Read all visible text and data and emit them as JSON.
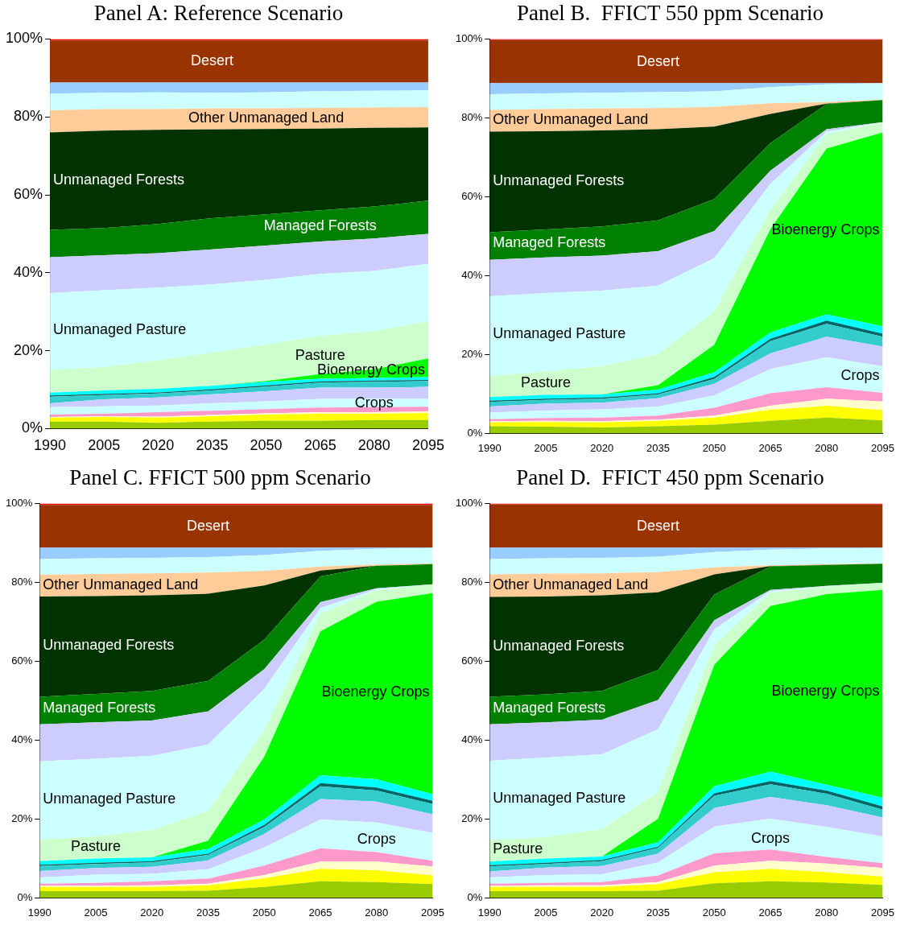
{
  "chart_data": [
    {
      "type": "area",
      "title": "Panel A: Reference Scenario",
      "stacked": true,
      "grid": false,
      "categories": [
        "1990",
        "2005",
        "2020",
        "2035",
        "2050",
        "2065",
        "2080",
        "2095"
      ],
      "ylim": [
        0,
        100
      ],
      "yticks": [
        {
          "value": 0,
          "label": "0%"
        },
        {
          "value": 20,
          "label": "20%"
        },
        {
          "value": 40,
          "label": "40%"
        },
        {
          "value": 60,
          "label": "60%"
        },
        {
          "value": 80,
          "label": "80%"
        },
        {
          "value": 100,
          "label": "100%"
        }
      ],
      "series": [
        {
          "color": "#99cc00",
          "values": [
            1.8,
            1.8,
            1.5,
            1.8,
            2,
            2,
            2.2,
            2.2
          ]
        },
        {
          "color": "#ffff00",
          "values": [
            1.0,
            1.2,
            1.3,
            1.4,
            1.6,
            1.8,
            1.6,
            1.8
          ]
        },
        {
          "color": "#ffffcc",
          "values": [
            0.2,
            0.2,
            0.3,
            0.3,
            0.3,
            0.4,
            0.4,
            0.4
          ]
        },
        {
          "color": "#ff99cc",
          "values": [
            0.6,
            0.6,
            1.1,
            1.1,
            1.1,
            1.2,
            1.3,
            1.2
          ]
        },
        {
          "name": "Crops",
          "color": "#ccffff",
          "values": [
            1.9,
            1.9,
            1.7,
            1.9,
            2.0,
            2.2,
            2.1,
            2.0
          ]
        },
        {
          "color": "#ccccff",
          "values": [
            1.0,
            1.8,
            2.1,
            2.3,
            2.6,
            2.9,
            2.9,
            3.1
          ]
        },
        {
          "color": "#33cccc",
          "values": [
            1.7,
            1.1,
            1.0,
            1.0,
            1.2,
            1.3,
            1.5,
            1.5
          ]
        },
        {
          "color": "#006666",
          "values": [
            0.3,
            0.3,
            0.3,
            0.3,
            0.3,
            0.3,
            0.3,
            0.3
          ]
        },
        {
          "color": "#00ffff",
          "values": [
            0.7,
            0.9,
            0.9,
            0.9,
            0.9,
            0.7,
            0.7,
            0.7
          ]
        },
        {
          "name": "Bioenergy Crops",
          "color": "#00ff00",
          "values": [
            0,
            0,
            0,
            0,
            0.2,
            1.2,
            2.2,
            4.8
          ]
        },
        {
          "name": "Pasture",
          "color": "#ccffcc",
          "values": [
            5.8,
            6.0,
            7.3,
            8.5,
            9.3,
            9.8,
            9.8,
            9.5
          ]
        },
        {
          "name": "Unmanaged Pasture",
          "color": "#ccffff",
          "values": [
            19.8,
            19.7,
            18.7,
            17.5,
            16.7,
            15.9,
            15.5,
            14.8
          ]
        },
        {
          "color": "#ccccff",
          "values": [
            9.2,
            9.0,
            8.8,
            9.0,
            8.8,
            8.3,
            8.3,
            7.7
          ]
        },
        {
          "name": "Managed Forests",
          "color": "#008000",
          "values": [
            7.0,
            7.0,
            7.5,
            8.0,
            8.0,
            8.0,
            8.2,
            8.5
          ]
        },
        {
          "name": "Unmanaged Forests",
          "color": "#003300",
          "values": [
            25,
            25,
            24.2,
            22.8,
            21.9,
            21,
            20.2,
            18.8
          ]
        },
        {
          "name": "Other Unmanaged Land",
          "color": "#ffcc99",
          "values": [
            5.7,
            5.5,
            5.3,
            5.4,
            5.3,
            5.3,
            5.2,
            5.2
          ]
        },
        {
          "color": "#ccffff",
          "values": [
            4.3,
            4.2,
            4.3,
            4.0,
            4.1,
            4.3,
            4.3,
            4.3
          ]
        },
        {
          "color": "#99ccff",
          "values": [
            2.8,
            2.6,
            2.5,
            2.6,
            2.5,
            2.2,
            2.1,
            2.0
          ]
        },
        {
          "name": "Desert",
          "color": "#993300",
          "values": [
            10.8,
            10.8,
            10.8,
            10.8,
            10.8,
            10.8,
            10.8,
            10.8
          ]
        },
        {
          "color": "#ff0000",
          "values": [
            0.4,
            0.4,
            0.4,
            0.4,
            0.4,
            0.4,
            0.4,
            0.4
          ]
        }
      ]
    },
    {
      "type": "area",
      "title": "Panel B.  FFICT 550 ppm Scenario",
      "stacked": true,
      "grid": false,
      "categories": [
        "1990",
        "2005",
        "2020",
        "2035",
        "2050",
        "2065",
        "2080",
        "2095"
      ],
      "ylim": [
        0,
        100
      ],
      "yticks": [
        {
          "value": 0,
          "label": "0%"
        },
        {
          "value": 20,
          "label": "20%"
        },
        {
          "value": 40,
          "label": "40%"
        },
        {
          "value": 60,
          "label": "60%"
        },
        {
          "value": 80,
          "label": "80%"
        },
        {
          "value": 100,
          "label": "100%"
        }
      ],
      "series": [
        {
          "color": "#99cc00",
          "values": [
            1.8,
            1.7,
            1.5,
            1.8,
            2.2,
            3.2,
            4,
            3.3
          ]
        },
        {
          "color": "#ffff00",
          "values": [
            1.0,
            1.2,
            1.3,
            1.4,
            1.8,
            2.8,
            3.0,
            2.6
          ]
        },
        {
          "color": "#ffffcc",
          "values": [
            0.3,
            0.3,
            0.3,
            0.3,
            0.5,
            1.0,
            1.8,
            2.2
          ]
        },
        {
          "color": "#ff99cc",
          "values": [
            0.5,
            0.7,
            0.9,
            1.0,
            2.0,
            3.2,
            2.9,
            2.2
          ]
        },
        {
          "name": "Crops",
          "color": "#ccffff",
          "values": [
            1.7,
            1.9,
            2.1,
            2.3,
            3.1,
            6.1,
            7.6,
            6.7
          ]
        },
        {
          "color": "#ccccff",
          "values": [
            1.5,
            1.8,
            1.7,
            2.1,
            3.0,
            4.0,
            5.2,
            5.0
          ]
        },
        {
          "color": "#33cccc",
          "values": [
            1.2,
            0.9,
            1.0,
            1.0,
            1.2,
            3.1,
            3.3,
            2.5
          ]
        },
        {
          "color": "#006666",
          "values": [
            0.3,
            0.3,
            0.3,
            0.3,
            0.5,
            0.6,
            0.8,
            0.8
          ]
        },
        {
          "color": "#00ffff",
          "values": [
            0.9,
            1.0,
            0.8,
            0.9,
            1.2,
            1.6,
            1.6,
            1.8
          ]
        },
        {
          "name": "Bioenergy Crops",
          "color": "#00ff00",
          "values": [
            0,
            0,
            0,
            1.1,
            7.0,
            26.2,
            42.0,
            49.2
          ]
        },
        {
          "name": "Pasture",
          "color": "#ccffcc",
          "values": [
            5.3,
            5.9,
            7.1,
            7.9,
            8.4,
            4.9,
            3.6,
            2.6
          ]
        },
        {
          "name": "Unmanaged Pasture",
          "color": "#ccffff",
          "values": [
            20.3,
            19.9,
            19.2,
            17.4,
            13.5,
            6.6,
            0.7,
            0
          ]
        },
        {
          "color": "#ccccff",
          "values": [
            9.2,
            9.0,
            8.9,
            8.7,
            6.9,
            3.3,
            0.6,
            0
          ]
        },
        {
          "name": "Managed Forests",
          "color": "#008000",
          "values": [
            7.0,
            7.1,
            7.4,
            7.8,
            8.1,
            7.0,
            6.4,
            5.6
          ]
        },
        {
          "name": "Unmanaged Forests",
          "color": "#003300",
          "values": [
            25.5,
            24.9,
            24.3,
            23.1,
            18.4,
            7.4,
            0.1,
            0
          ]
        },
        {
          "name": "Other Unmanaged Land",
          "color": "#ffcc99",
          "values": [
            5.5,
            5.6,
            5.6,
            5.4,
            5.0,
            2.7,
            0.4,
            0.1
          ]
        },
        {
          "color": "#ccffff",
          "values": [
            4.0,
            4.0,
            4.0,
            4.0,
            3.9,
            4.1,
            4.5,
            4.2
          ]
        },
        {
          "color": "#99ccff",
          "values": [
            2.8,
            2.6,
            2.4,
            2.3,
            2.1,
            1.0,
            0.3,
            0
          ]
        },
        {
          "name": "Desert",
          "color": "#993300",
          "values": [
            10.9,
            10.9,
            10.9,
            10.9,
            10.9,
            10.9,
            10.9,
            10.9
          ]
        },
        {
          "color": "#ff0000",
          "values": [
            0.3,
            0.3,
            0.3,
            0.3,
            0.3,
            0.3,
            0.3,
            0.3
          ]
        }
      ]
    },
    {
      "type": "area",
      "title": "Panel C. FFICT 500 ppm Scenario",
      "stacked": true,
      "grid": false,
      "categories": [
        "1990",
        "2005",
        "2020",
        "2035",
        "2050",
        "2065",
        "2080",
        "2095"
      ],
      "ylim": [
        0,
        100
      ],
      "yticks": [
        {
          "value": 0,
          "label": "0%"
        },
        {
          "value": 20,
          "label": "20%"
        },
        {
          "value": 40,
          "label": "40%"
        },
        {
          "value": 60,
          "label": "60%"
        },
        {
          "value": 80,
          "label": "80%"
        },
        {
          "value": 100,
          "label": "100%"
        }
      ],
      "series": [
        {
          "color": "#99cc00",
          "values": [
            1.7,
            1.7,
            1.7,
            1.8,
            2.8,
            4.2,
            4,
            3.5
          ]
        },
        {
          "color": "#ffff00",
          "values": [
            1.1,
            1.1,
            1.1,
            1.4,
            2.2,
            3.2,
            3.0,
            2.2
          ]
        },
        {
          "color": "#ffffcc",
          "values": [
            0.3,
            0.3,
            0.4,
            0.4,
            0.8,
            1.8,
            2.2,
            2.3
          ]
        },
        {
          "color": "#ff99cc",
          "values": [
            0.5,
            0.7,
            1.0,
            1.3,
            2.4,
            3.4,
            2.4,
            1.4
          ]
        },
        {
          "name": "Crops",
          "color": "#ccffff",
          "values": [
            1.6,
            2.1,
            1.9,
            2.4,
            4.6,
            7.3,
            7.5,
            7.1
          ]
        },
        {
          "color": "#ccccff",
          "values": [
            1.6,
            1.7,
            1.8,
            2.2,
            3.4,
            5.2,
            5.3,
            4.7
          ]
        },
        {
          "color": "#33cccc",
          "values": [
            1.3,
            1.0,
            1.1,
            1.4,
            1.8,
            3.2,
            2.8,
            2.6
          ]
        },
        {
          "color": "#006666",
          "values": [
            0.3,
            0.3,
            0.3,
            0.3,
            0.5,
            0.8,
            0.8,
            0.8
          ]
        },
        {
          "color": "#00ffff",
          "values": [
            0.9,
            1.1,
            1.0,
            1.2,
            1.4,
            2.0,
            2.1,
            1.7
          ]
        },
        {
          "name": "Bioenergy Crops",
          "color": "#00ff00",
          "values": [
            0,
            0,
            0,
            2.1,
            15.9,
            36.5,
            45.0,
            51.0
          ]
        },
        {
          "name": "Pasture",
          "color": "#ccffcc",
          "values": [
            5.5,
            5.6,
            6.9,
            7.5,
            6.7,
            4.4,
            2.9,
            2.2
          ]
        },
        {
          "name": "Unmanaged Pasture",
          "color": "#ccffff",
          "values": [
            19.8,
            19.7,
            18.8,
            16.9,
            10.5,
            1.5,
            0.3,
            0
          ]
        },
        {
          "color": "#ccccff",
          "values": [
            9.4,
            9.2,
            9.0,
            8.4,
            5.0,
            1.5,
            0.2,
            0
          ]
        },
        {
          "name": "Managed Forests",
          "color": "#008000",
          "values": [
            7.0,
            7.2,
            7.5,
            7.7,
            7.5,
            6.5,
            5.7,
            5.1
          ]
        },
        {
          "name": "Unmanaged Forests",
          "color": "#003300",
          "values": [
            25.4,
            24.8,
            24.2,
            22.1,
            13.7,
            1.5,
            0,
            0
          ]
        },
        {
          "name": "Other Unmanaged Land",
          "color": "#ffcc99",
          "values": [
            5.5,
            5.6,
            5.6,
            5.4,
            3.7,
            1.0,
            0.3,
            0.2
          ]
        },
        {
          "color": "#ccffff",
          "values": [
            4.0,
            4.0,
            3.9,
            3.9,
            4.0,
            4.0,
            4.0,
            3.9
          ]
        },
        {
          "color": "#99ccff",
          "values": [
            2.9,
            2.7,
            2.6,
            2.4,
            1.9,
            0.8,
            0.3,
            0.1
          ]
        },
        {
          "name": "Desert",
          "color": "#993300",
          "values": [
            10.8,
            10.8,
            10.8,
            10.8,
            10.8,
            10.8,
            10.8,
            10.8
          ]
        },
        {
          "color": "#ff0000",
          "values": [
            0.4,
            0.4,
            0.4,
            0.4,
            0.4,
            0.4,
            0.4,
            0.4
          ]
        }
      ]
    },
    {
      "type": "area",
      "title": "Panel D.  FFICT 450 ppm Scenario",
      "stacked": true,
      "grid": false,
      "categories": [
        "1990",
        "2005",
        "2020",
        "2035",
        "2050",
        "2065",
        "2080",
        "2095"
      ],
      "ylim": [
        0,
        100
      ],
      "yticks": [
        {
          "value": 0,
          "label": "0%"
        },
        {
          "value": 20,
          "label": "20%"
        },
        {
          "value": 40,
          "label": "40%"
        },
        {
          "value": 60,
          "label": "60%"
        },
        {
          "value": 80,
          "label": "80%"
        },
        {
          "value": 100,
          "label": "100%"
        }
      ],
      "series": [
        {
          "color": "#99cc00",
          "values": [
            1.7,
            1.7,
            1.7,
            1.8,
            3.7,
            4.2,
            3.9,
            3.3
          ]
        },
        {
          "color": "#ffff00",
          "values": [
            1.1,
            1.1,
            1.1,
            1.7,
            2.8,
            3.2,
            2.6,
            2.1
          ]
        },
        {
          "color": "#ffffcc",
          "values": [
            0.3,
            0.4,
            0.4,
            0.5,
            1.7,
            2.0,
            2.2,
            2.2
          ]
        },
        {
          "color": "#ff99cc",
          "values": [
            0.5,
            0.6,
            0.8,
            1.7,
            3.1,
            2.9,
            1.7,
            1.2
          ]
        },
        {
          "name": "Crops",
          "color": "#ccffff",
          "values": [
            1.6,
            2.0,
            2.0,
            3.3,
            6.8,
            7.8,
            7.6,
            6.8
          ]
        },
        {
          "color": "#ccccff",
          "values": [
            1.5,
            1.9,
            2.1,
            2.2,
            4.7,
            5.5,
            5.5,
            4.8
          ]
        },
        {
          "color": "#33cccc",
          "values": [
            1.3,
            0.9,
            1.2,
            1.5,
            3.1,
            3.2,
            2.9,
            2.0
          ]
        },
        {
          "color": "#006666",
          "values": [
            0.3,
            0.3,
            0.3,
            0.3,
            0.6,
            0.8,
            0.8,
            0.8
          ]
        },
        {
          "color": "#00ffff",
          "values": [
            0.9,
            1.1,
            0.9,
            1.1,
            1.8,
            2.4,
            1.5,
            2.2
          ]
        },
        {
          "name": "Bioenergy Crops",
          "color": "#00ff00",
          "values": [
            0,
            0,
            0,
            6.0,
            30.8,
            42.0,
            48.3,
            52.7
          ]
        },
        {
          "name": "Pasture",
          "color": "#ccffcc",
          "values": [
            5.4,
            5.4,
            7.0,
            6.7,
            4.9,
            3.4,
            1.9,
            1.8
          ]
        },
        {
          "name": "Unmanaged Pasture",
          "color": "#ccffff",
          "values": [
            20.2,
            20.2,
            18.9,
            16.0,
            4.1,
            0.4,
            0.1,
            0
          ]
        },
        {
          "color": "#ccccff",
          "values": [
            9.2,
            8.9,
            8.8,
            7.4,
            2.3,
            0.3,
            0.1,
            0
          ]
        },
        {
          "name": "Managed Forests",
          "color": "#008000",
          "values": [
            7.0,
            7.1,
            7.3,
            7.6,
            6.5,
            5.9,
            5.3,
            4.8
          ]
        },
        {
          "name": "Unmanaged Forests",
          "color": "#003300",
          "values": [
            25.3,
            24.8,
            24.2,
            19.7,
            5.1,
            0.1,
            0,
            0
          ]
        },
        {
          "name": "Other Unmanaged Land",
          "color": "#ffcc99",
          "values": [
            5.7,
            5.8,
            5.6,
            5.1,
            1.8,
            0.2,
            0.2,
            0.1
          ]
        },
        {
          "color": "#ccffff",
          "values": [
            3.9,
            3.9,
            3.9,
            3.9,
            3.9,
            4.0,
            4.0,
            3.9
          ]
        },
        {
          "color": "#99ccff",
          "values": [
            2.9,
            2.7,
            2.6,
            2.3,
            1.1,
            0.5,
            0.2,
            0.1
          ]
        },
        {
          "name": "Desert",
          "color": "#993300",
          "values": [
            10.9,
            10.9,
            10.9,
            10.9,
            10.9,
            10.9,
            10.9,
            10.9
          ]
        },
        {
          "color": "#ff0000",
          "values": [
            0.3,
            0.3,
            0.3,
            0.3,
            0.3,
            0.3,
            0.3,
            0.3
          ]
        }
      ]
    }
  ]
}
